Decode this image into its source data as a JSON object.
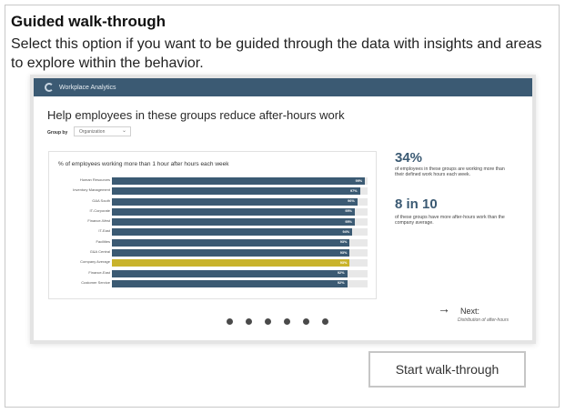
{
  "card": {
    "title": "Guided walk-through",
    "description": "Select this option if you want to be guided through the data with insights and areas to explore within the behavior."
  },
  "preview": {
    "brand": "Workplace Analytics",
    "title": "Help employees in these groups reduce after-hours work",
    "group_by_label": "Group by",
    "group_by_value": "Organization",
    "chart_data": {
      "type": "bar",
      "title": "% of employees working more than 1 hour after hours each week",
      "categories": [
        "Human Resources",
        "Inventory Management",
        "G&A South",
        "IT-Corporate",
        "Finance-West",
        "IT-East",
        "Facilities",
        "G&A Central",
        "Company Average",
        "Finance-East",
        "Customer Service"
      ],
      "values": [
        99,
        97,
        96,
        95,
        95,
        94,
        93,
        93,
        93,
        92,
        92
      ],
      "value_labels": [
        "99%",
        "97%",
        "96%",
        "95%",
        "95%",
        "94%",
        "93%",
        "93%",
        "93%",
        "92%",
        "92%"
      ],
      "highlight": "Company Average",
      "colors": {
        "bar": "#3b5a73",
        "highlight": "#c9b32b",
        "track": "#e8e8e8"
      },
      "xlim": [
        0,
        100
      ]
    },
    "stat1": {
      "value": "34%",
      "text": "of employees in these groups are working more than their defined work hours each week."
    },
    "stat2": {
      "value": "8 in 10",
      "text": "of these groups have more after-hours work than the company average."
    },
    "next": {
      "label": "Next:",
      "sub": "Distribution of after-hours"
    },
    "page_dots": 6
  },
  "actions": {
    "start_label": "Start walk-through"
  }
}
